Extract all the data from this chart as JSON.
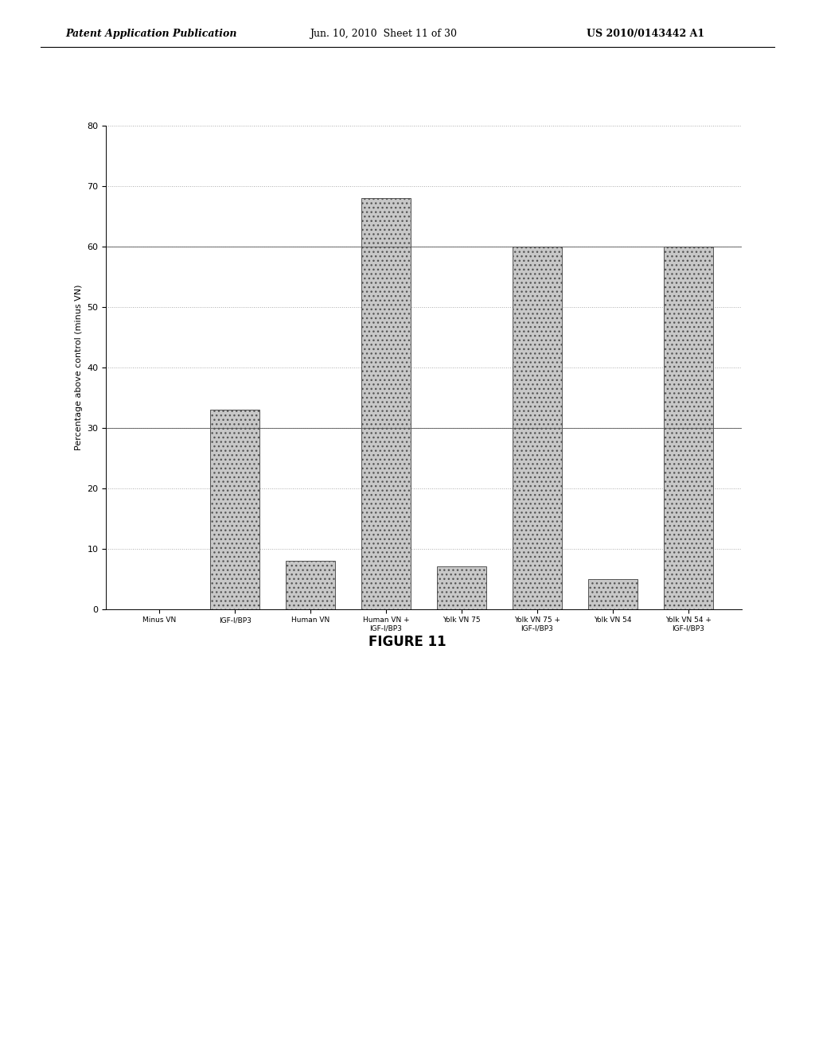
{
  "categories": [
    "Minus VN",
    "IGF-I/BP3",
    "Human VN",
    "Human VN +\nIGF-I/BP3",
    "Yolk VN 75",
    "Yolk VN 75 +\nIGF-I/BP3",
    "Yolk VN 54",
    "Yolk VN 54 +\nIGF-I/BP3"
  ],
  "values": [
    0,
    33,
    8,
    68,
    7,
    60,
    5,
    60
  ],
  "bar_color": "#c8c8c8",
  "bar_edgecolor": "#555555",
  "ylabel": "Percentage above control (minus VN)",
  "ylim": [
    0,
    80
  ],
  "yticks": [
    0,
    10,
    20,
    30,
    40,
    50,
    60,
    70,
    80
  ],
  "figure_caption": "FIGURE 11",
  "background_color": "#ffffff",
  "header_left": "Patent Application Publication",
  "header_center": "Jun. 10, 2010  Sheet 11 of 30",
  "header_right": "US 2010/0143442 A1",
  "grid_color": "#aaaaaa",
  "bar_hatch": "...",
  "title_fontsize": 11,
  "axis_fontsize": 8,
  "tick_fontsize": 8
}
